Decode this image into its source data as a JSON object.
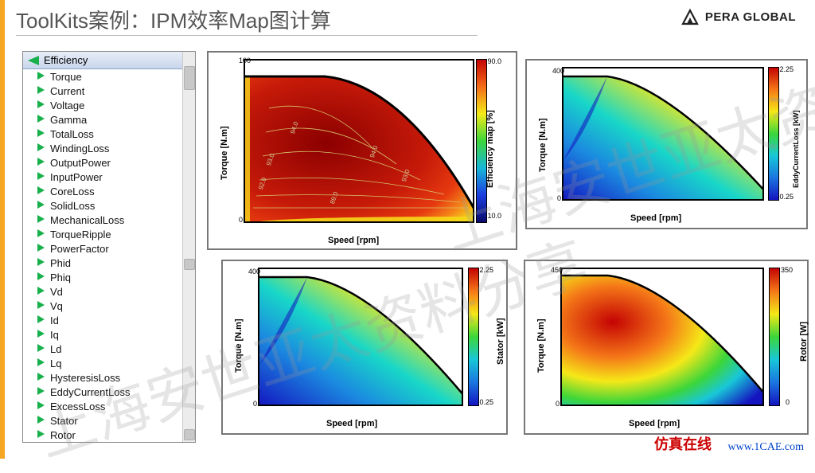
{
  "title": "ToolKits案例：IPM效率Map图计算",
  "brand": "PERA GLOBAL",
  "tree": {
    "header": "Efficiency",
    "items": [
      "Torque",
      "Current",
      "Voltage",
      "Gamma",
      "TotalLoss",
      "WindingLoss",
      "OutputPower",
      "InputPower",
      "CoreLoss",
      "SolidLoss",
      "MechanicalLoss",
      "TorqueRipple",
      "PowerFactor",
      "Phid",
      "Phiq",
      "Vd",
      "Vq",
      "Id",
      "Iq",
      "Ld",
      "Lq",
      "HysteresisLoss",
      "EddyCurrentLoss",
      "ExcessLoss",
      "Stator",
      "Rotor"
    ]
  },
  "charts": {
    "efficiency": {
      "type": "heatmap",
      "xlabel": "Speed [rpm]",
      "ylabel": "Torque [N.m]",
      "cbar_label": "Efficiency map [%]",
      "xlim": [
        0,
        9000
      ],
      "ylim": [
        0,
        100
      ],
      "ytick_step": 10,
      "xtick_step": 1000,
      "cbar_min": 10,
      "cbar_max": 90,
      "cbar_step": 10,
      "contour_values": [
        78.0,
        79.0,
        86.0,
        89.0,
        90.0,
        91.0,
        92.0,
        93.0,
        94.0
      ],
      "background_color": "#ffffff",
      "border_color": "#000000",
      "boundary_color": "#000000",
      "boundary_width": 3,
      "dominant_fill": "#c61a09",
      "gradient_stops": [
        "#1414c0",
        "#18c7d8",
        "#f5e818",
        "#f57818",
        "#c40303",
        "#8b0000"
      ]
    },
    "eddy": {
      "type": "heatmap",
      "xlabel": "Speed [rpm]",
      "ylabel": "Torque [N.m]",
      "cbar_label": "EddyCurrentLoss [kW]",
      "xlim": [
        0,
        9000
      ],
      "ylim": [
        0,
        400
      ],
      "ytick_step": 50,
      "xtick_step": 1000,
      "cbar_min": 0.25,
      "cbar_max": 2.25,
      "cbar_step": 0.25,
      "gradient_stops": [
        "#1414c0",
        "#1b75e0",
        "#18c7d8",
        "#3cd63a",
        "#f5e818",
        "#f57818",
        "#c40303"
      ]
    },
    "stator": {
      "type": "heatmap",
      "xlabel": "Speed [rpm]",
      "ylabel": "Torque [N.m]",
      "cbar_label": "Stator [kW]",
      "xlim": [
        0,
        8000
      ],
      "ylim": [
        0,
        400
      ],
      "ytick_step": 50,
      "xtick_step": 1000,
      "cbar_min": 0.25,
      "cbar_max": 2.25,
      "cbar_step": 0.25,
      "gradient_stops": [
        "#1414c0",
        "#1b75e0",
        "#18c7d8",
        "#3cd63a",
        "#f5e818",
        "#f57818",
        "#c40303"
      ]
    },
    "rotor": {
      "type": "heatmap",
      "xlabel": "Speed [rpm]",
      "ylabel": "Torque [N.m]",
      "cbar_label": "Rotor [W]",
      "xlim": [
        0,
        8000
      ],
      "ylim": [
        0,
        450
      ],
      "ytick_step": 50,
      "xtick_step": 1000,
      "cbar_min": 0,
      "cbar_max": 350,
      "cbar_step": 50,
      "gradient_stops": [
        "#1414c0",
        "#1b75e0",
        "#18c7d8",
        "#3cd63a",
        "#f5e818",
        "#f57818",
        "#c40303"
      ]
    }
  },
  "watermark": "上海安世亚太资料分享",
  "footer": {
    "cn": "仿真在线",
    "url": "www.1CAE.com"
  },
  "colors": {
    "accent_orange": "#f5a623",
    "tree_header_top": "#e8eef7",
    "tree_header_bottom": "#c8d5eb",
    "green_triangle": "#17b04b"
  }
}
